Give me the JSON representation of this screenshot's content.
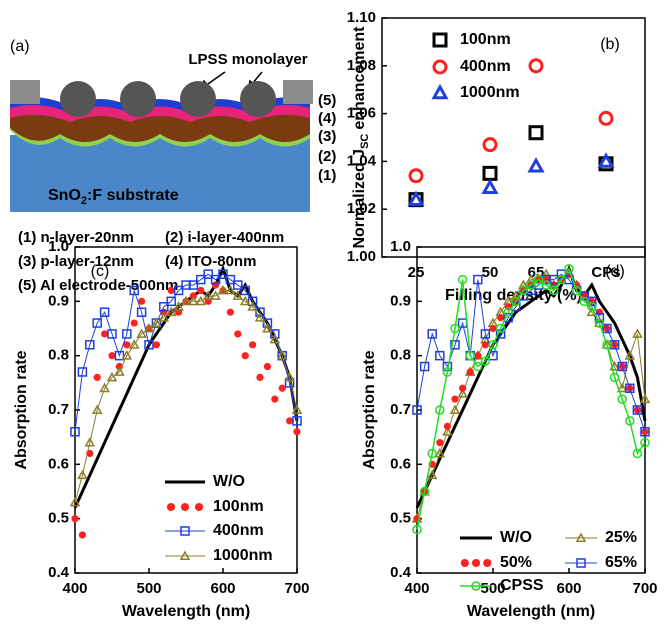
{
  "diagram": {
    "panel_label": "(a)",
    "monolayer_label": "LPSS monolayer",
    "layer_numbers": [
      "(5)",
      "(4)",
      "(3)",
      "(2)",
      "(1)"
    ],
    "substrate_label": {
      "text": "SnO",
      "sub": "2",
      "tail": ":F substrate"
    },
    "legend": [
      "(1) n-layer-20nm",
      "(2) i-layer-400nm",
      "(3) p-layer-12nm",
      "(4) ITO-80nm",
      "(5) Al electrode-500nm"
    ]
  },
  "chart_data": [
    {
      "type": "scatter",
      "panel_label": "(b)",
      "x_label": "Filling density (%)",
      "y_label": {
        "text": "Normalized J",
        "sub": "SC",
        "tail": "enhancement"
      },
      "categories": [
        "25",
        "50",
        "65",
        "CPs"
      ],
      "ylim": [
        1.0,
        1.1
      ],
      "yticks": [
        {
          "value": 1.0,
          "label": "1.00"
        },
        1.02,
        1.04,
        1.06,
        1.08,
        {
          "value": 1.1,
          "label": "1.10"
        }
      ],
      "series": [
        {
          "name": "100nm",
          "color": "#000000",
          "marker": "square",
          "values": [
            1.024,
            1.035,
            1.052,
            1.039
          ]
        },
        {
          "name": "400nm",
          "color": "#ff2020",
          "marker": "circle",
          "values": [
            1.034,
            1.047,
            1.08,
            1.058
          ]
        },
        {
          "name": "1000nm",
          "color": "#1f3fdc",
          "marker": "triangle",
          "values": [
            1.024,
            1.029,
            1.038,
            1.04
          ]
        }
      ]
    },
    {
      "type": "line",
      "panel_label": "(c)",
      "x_label": "Wavelength (nm)",
      "y_label": "Absorption rate",
      "x": [
        400,
        410,
        420,
        430,
        440,
        450,
        460,
        470,
        480,
        490,
        500,
        510,
        520,
        530,
        540,
        550,
        560,
        570,
        580,
        590,
        600,
        610,
        620,
        630,
        640,
        650,
        660,
        670,
        680,
        690,
        700
      ],
      "xlim": [
        400,
        700
      ],
      "xticks": [
        400,
        500,
        600,
        700
      ],
      "ylim": [
        0.4,
        1.0
      ],
      "yticks": [
        0.4,
        0.5,
        0.6,
        0.7,
        0.8,
        0.9,
        {
          "value": 1.0,
          "label": "1.0"
        }
      ],
      "series": [
        {
          "name": "W/O",
          "color": "#000000",
          "marker": "none",
          "line_width": 3,
          "values": [
            0.52,
            0.55,
            0.58,
            0.61,
            0.64,
            0.67,
            0.7,
            0.73,
            0.76,
            0.79,
            0.82,
            0.84,
            0.86,
            0.88,
            0.89,
            0.9,
            0.91,
            0.92,
            0.91,
            0.93,
            0.96,
            0.92,
            0.91,
            0.93,
            0.9,
            0.88,
            0.86,
            0.83,
            0.8,
            0.76,
            0.68
          ]
        },
        {
          "name": "100nm",
          "color": "#ff2020",
          "marker": "dot",
          "line_width": 0,
          "values": [
            0.5,
            0.47,
            0.62,
            0.76,
            0.84,
            0.8,
            0.78,
            0.82,
            0.86,
            0.9,
            0.85,
            0.82,
            0.88,
            0.92,
            0.88,
            0.9,
            0.91,
            0.92,
            0.9,
            0.93,
            0.92,
            0.88,
            0.84,
            0.8,
            0.82,
            0.76,
            0.78,
            0.72,
            0.74,
            0.68,
            0.66
          ]
        },
        {
          "name": "400nm",
          "color": "#1f3fdc",
          "marker": "square",
          "line_width": 1,
          "values": [
            0.66,
            0.77,
            0.82,
            0.86,
            0.88,
            0.84,
            0.8,
            0.84,
            0.92,
            0.88,
            0.82,
            0.86,
            0.89,
            0.9,
            0.92,
            0.93,
            0.93,
            0.94,
            0.95,
            0.94,
            0.95,
            0.94,
            0.93,
            0.92,
            0.9,
            0.88,
            0.86,
            0.84,
            0.8,
            0.75,
            0.68
          ]
        },
        {
          "name": "1000nm",
          "color": "#8b7d2a",
          "marker": "triangle",
          "line_width": 1,
          "values": [
            0.53,
            0.58,
            0.64,
            0.7,
            0.74,
            0.76,
            0.77,
            0.8,
            0.82,
            0.84,
            0.85,
            0.86,
            0.87,
            0.88,
            0.89,
            0.9,
            0.9,
            0.9,
            0.91,
            0.91,
            0.92,
            0.92,
            0.91,
            0.9,
            0.89,
            0.87,
            0.85,
            0.83,
            0.8,
            0.76,
            0.7
          ]
        }
      ]
    },
    {
      "type": "line",
      "panel_label": "(d)",
      "x_label": "Wavelength (nm)",
      "y_label": "Absorption rate",
      "x": [
        400,
        410,
        420,
        430,
        440,
        450,
        460,
        470,
        480,
        490,
        500,
        510,
        520,
        530,
        540,
        550,
        560,
        570,
        580,
        590,
        600,
        610,
        620,
        630,
        640,
        650,
        660,
        670,
        680,
        690,
        700
      ],
      "xlim": [
        400,
        700
      ],
      "xticks": [
        400,
        500,
        600,
        700
      ],
      "ylim": [
        0.4,
        1.0
      ],
      "yticks": [
        0.4,
        0.5,
        0.6,
        0.7,
        0.8,
        0.9,
        {
          "value": 1.0,
          "label": "1.0"
        }
      ],
      "series": [
        {
          "name": "W/O",
          "color": "#000000",
          "marker": "none",
          "line_width": 3,
          "values": [
            0.52,
            0.55,
            0.58,
            0.61,
            0.64,
            0.67,
            0.7,
            0.73,
            0.76,
            0.79,
            0.82,
            0.84,
            0.86,
            0.88,
            0.89,
            0.9,
            0.91,
            0.92,
            0.91,
            0.93,
            0.96,
            0.92,
            0.91,
            0.93,
            0.9,
            0.88,
            0.86,
            0.83,
            0.8,
            0.76,
            0.68
          ]
        },
        {
          "name": "25%",
          "color": "#8b7d2a",
          "marker": "triangle",
          "line_width": 1,
          "values": [
            0.5,
            0.55,
            0.58,
            0.62,
            0.66,
            0.7,
            0.73,
            0.77,
            0.8,
            0.83,
            0.86,
            0.88,
            0.9,
            0.91,
            0.93,
            0.94,
            0.94,
            0.95,
            0.93,
            0.94,
            0.95,
            0.93,
            0.91,
            0.88,
            0.86,
            0.82,
            0.78,
            0.74,
            0.8,
            0.84,
            0.72
          ]
        },
        {
          "name": "50%",
          "color": "#ff2020",
          "marker": "dot",
          "line_width": 0,
          "values": [
            0.5,
            0.55,
            0.6,
            0.64,
            0.67,
            0.72,
            0.74,
            0.77,
            0.8,
            0.82,
            0.85,
            0.87,
            0.89,
            0.9,
            0.92,
            0.93,
            0.94,
            0.94,
            0.93,
            0.94,
            0.95,
            0.93,
            0.91,
            0.9,
            0.88,
            0.85,
            0.82,
            0.78,
            0.74,
            0.7,
            0.66
          ]
        },
        {
          "name": "65%",
          "color": "#1f3fdc",
          "marker": "square",
          "line_width": 1,
          "values": [
            0.7,
            0.78,
            0.84,
            0.8,
            0.78,
            0.82,
            0.86,
            0.8,
            0.94,
            0.84,
            0.8,
            0.84,
            0.87,
            0.89,
            0.91,
            0.92,
            0.93,
            0.94,
            0.94,
            0.95,
            0.94,
            0.92,
            0.91,
            0.9,
            0.87,
            0.85,
            0.82,
            0.78,
            0.74,
            0.7,
            0.66
          ]
        },
        {
          "name": "CPSS",
          "color": "#22dd22",
          "marker": "circle",
          "line_width": 1.5,
          "values": [
            0.48,
            0.55,
            0.62,
            0.7,
            0.77,
            0.85,
            0.94,
            0.8,
            0.78,
            0.79,
            0.82,
            0.85,
            0.88,
            0.9,
            0.92,
            0.93,
            0.94,
            0.93,
            0.92,
            0.94,
            0.96,
            0.92,
            0.9,
            0.89,
            0.86,
            0.82,
            0.76,
            0.72,
            0.68,
            0.62,
            0.64
          ]
        }
      ]
    }
  ]
}
